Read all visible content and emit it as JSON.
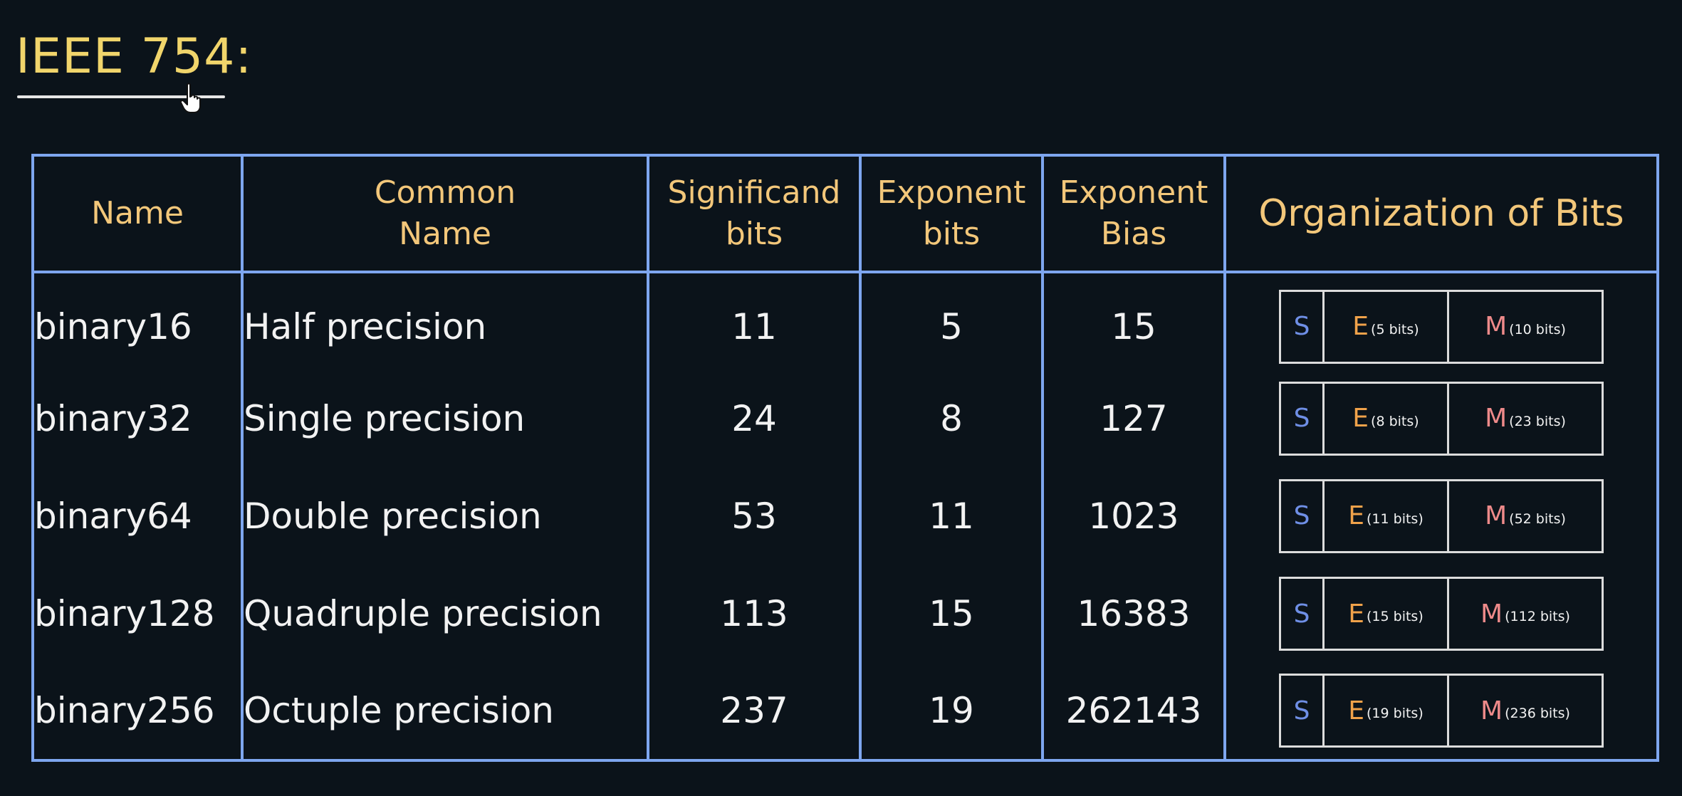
{
  "title": "IEEE 754:",
  "table": {
    "headers": [
      {
        "line1": "Name",
        "line2": ""
      },
      {
        "line1": "Common",
        "line2": "Name"
      },
      {
        "line1": "Significand",
        "line2": "bits"
      },
      {
        "line1": "Exponent",
        "line2": "bits"
      },
      {
        "line1": "Exponent",
        "line2": "Bias"
      },
      {
        "line1": "Organization of Bits",
        "line2": ""
      }
    ],
    "rows": [
      {
        "name": "binary16",
        "common": "Half precision",
        "significand": "11",
        "exponent": "5",
        "bias": "15",
        "org": {
          "s": "S",
          "e": "E",
          "e_sub": "(5 bits)",
          "m": "M",
          "m_sub": "(10 bits)"
        }
      },
      {
        "name": "binary32",
        "common": "Single precision",
        "significand": "24",
        "exponent": "8",
        "bias": "127",
        "org": {
          "s": "S",
          "e": "E",
          "e_sub": "(8 bits)",
          "m": "M",
          "m_sub": "(23 bits)"
        }
      },
      {
        "name": "binary64",
        "common": "Double precision",
        "significand": "53",
        "exponent": "11",
        "bias": "1023",
        "org": {
          "s": "S",
          "e": "E",
          "e_sub": "(11 bits)",
          "m": "M",
          "m_sub": "(52 bits)"
        }
      },
      {
        "name": "binary128",
        "common": "Quadruple precision",
        "significand": "113",
        "exponent": "15",
        "bias": "16383",
        "org": {
          "s": "S",
          "e": "E",
          "e_sub": "(15 bits)",
          "m": "M",
          "m_sub": "(112 bits)"
        }
      },
      {
        "name": "binary256",
        "common": "Octuple precision",
        "significand": "237",
        "exponent": "19",
        "bias": "262143",
        "org": {
          "s": "S",
          "e": "E",
          "e_sub": "(19 bits)",
          "m": "M",
          "m_sub": "(236 bits)"
        }
      }
    ]
  },
  "icons": {
    "cursor": "hand-pointer-icon"
  },
  "colors": {
    "background": "#0b131a",
    "title": "#f1d56b",
    "header_text": "#f3c77a",
    "table_border": "#7ea6ef",
    "sign": "#6f8fe6",
    "exponent": "#f0a24a",
    "mantissa": "#ee8a8a"
  }
}
